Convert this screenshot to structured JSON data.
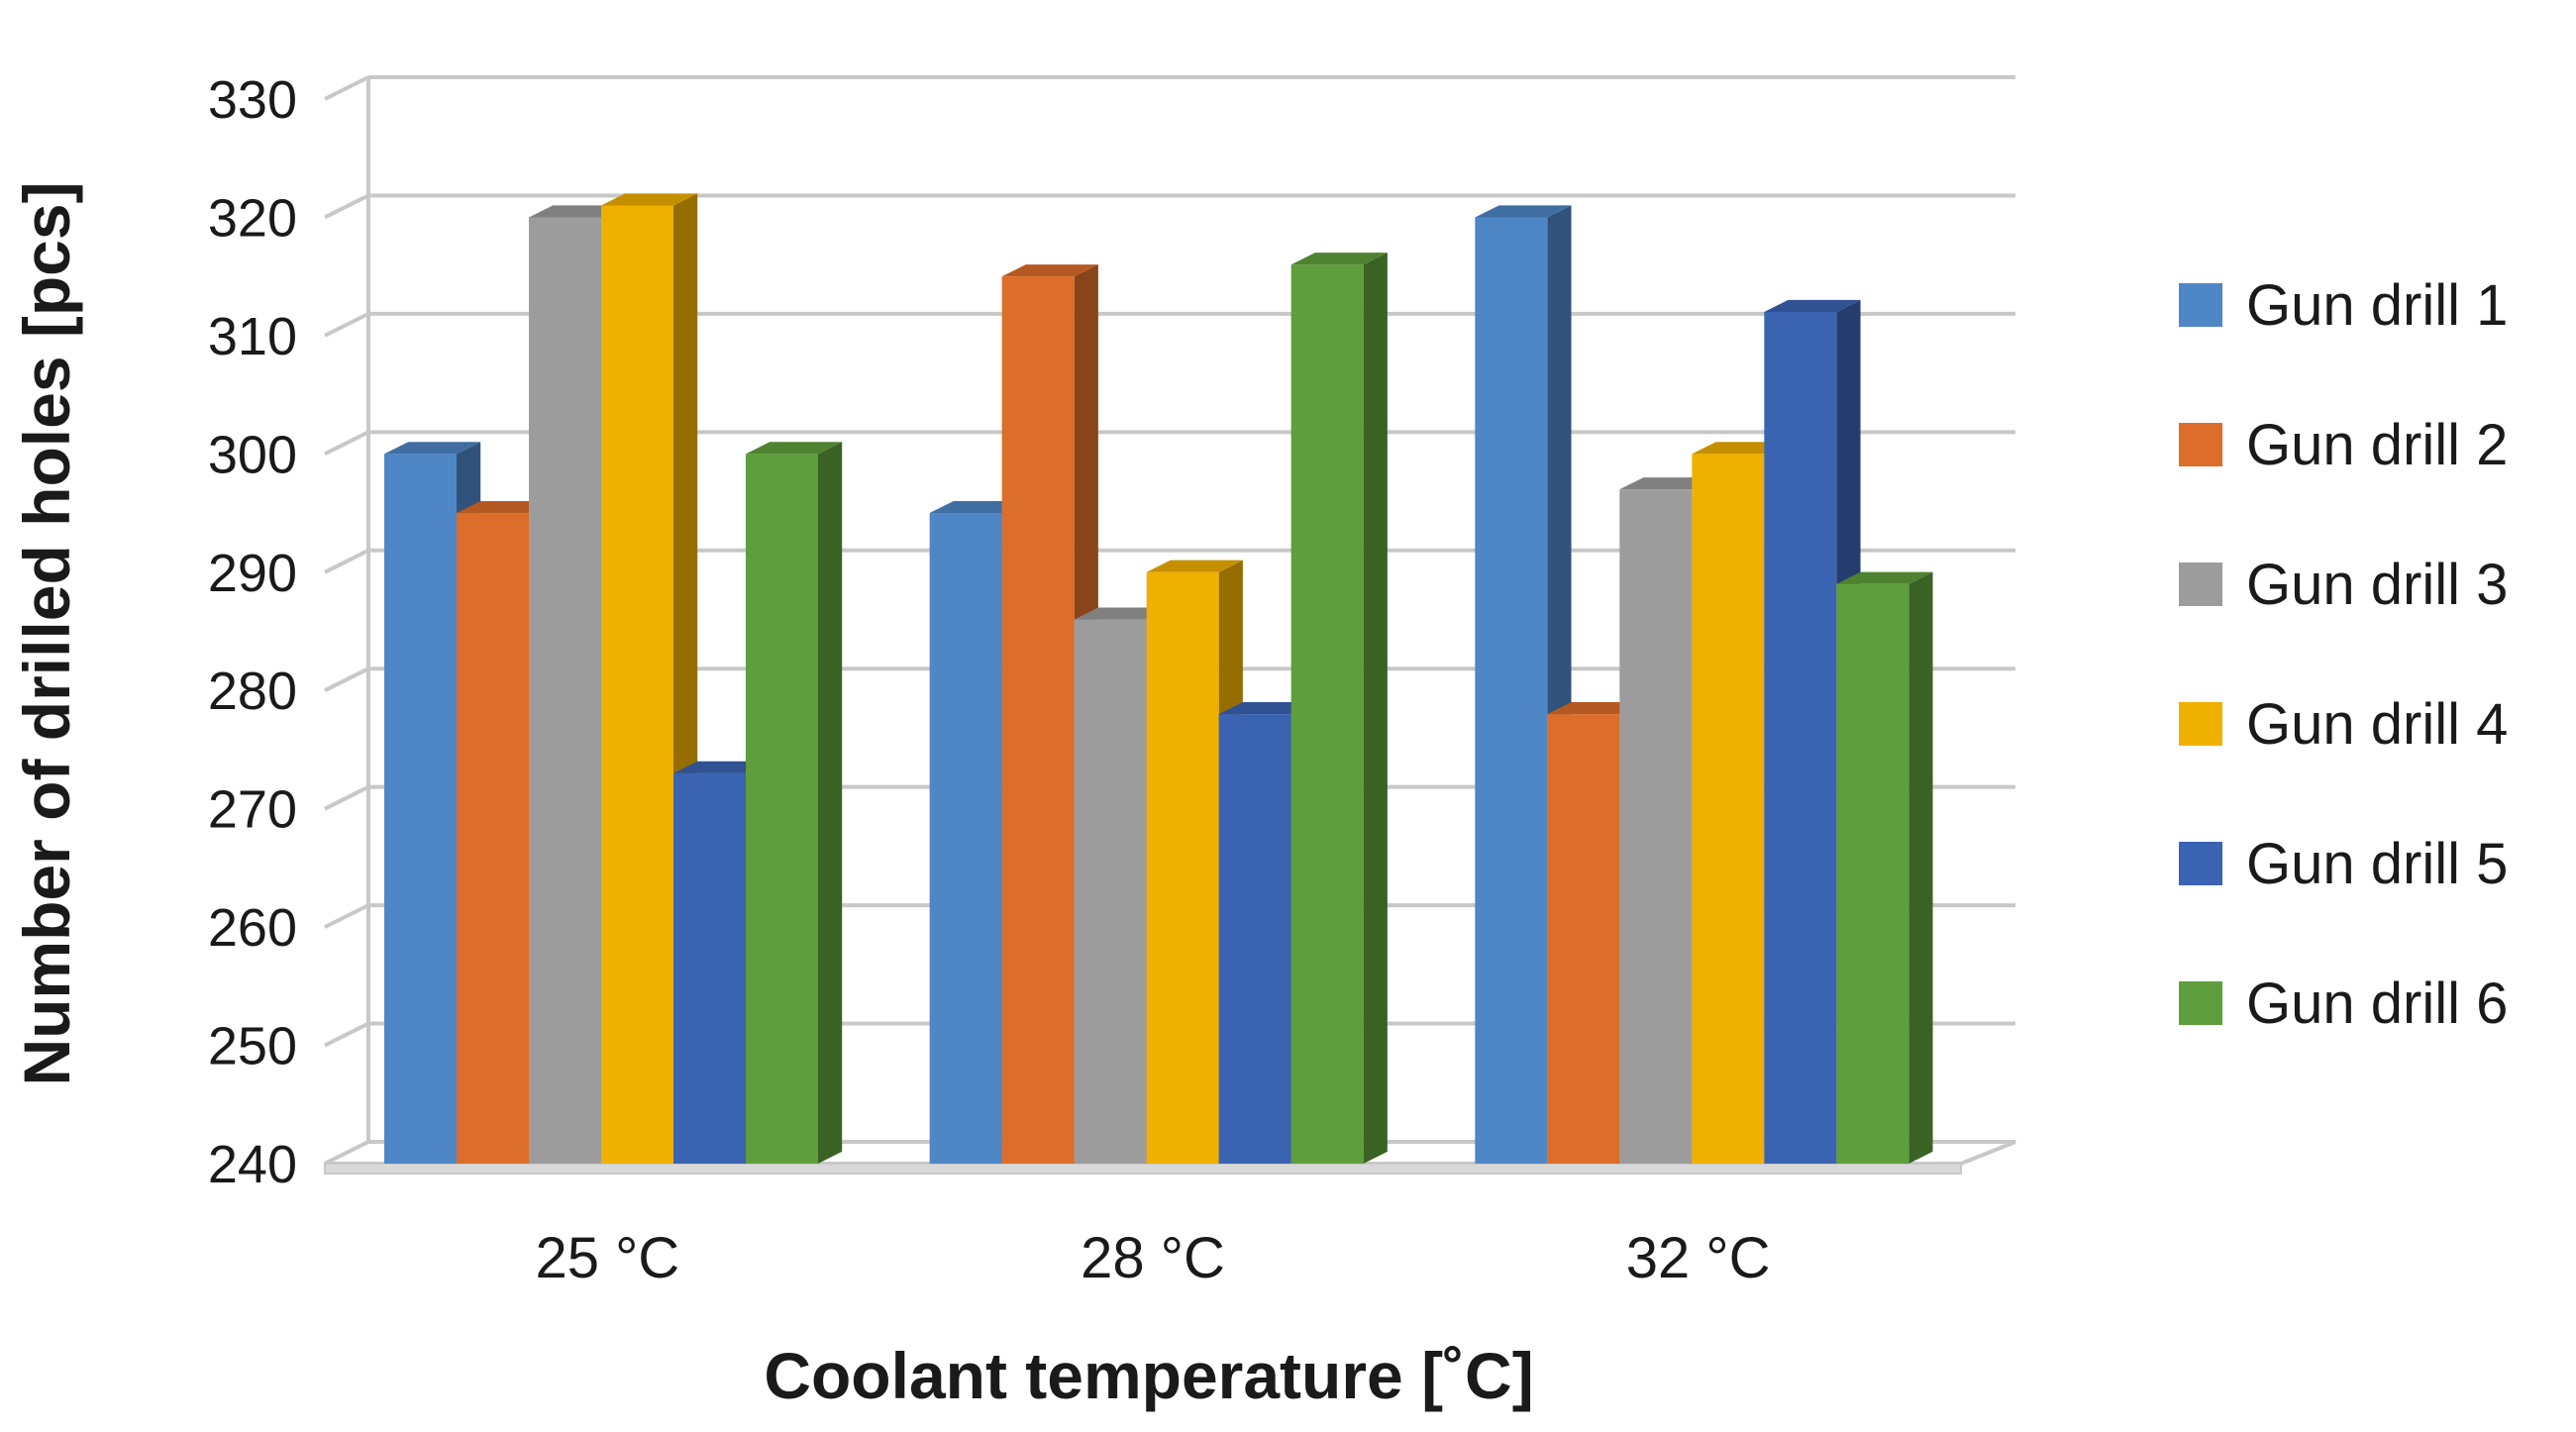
{
  "chart_data": {
    "type": "bar",
    "categories": [
      "25 °C",
      "28 °C",
      "32 °C"
    ],
    "series": [
      {
        "name": "Gun drill 1",
        "values": [
          300,
          295,
          320
        ],
        "color": "#4f86c6"
      },
      {
        "name": "Gun drill 2",
        "values": [
          295,
          315,
          278
        ],
        "color": "#dd6d2a"
      },
      {
        "name": "Gun drill 3",
        "values": [
          320,
          286,
          297
        ],
        "color": "#9c9c9c"
      },
      {
        "name": "Gun drill 4",
        "values": [
          321,
          290,
          300
        ],
        "color": "#f0b000"
      },
      {
        "name": "Gun drill 5",
        "values": [
          273,
          278,
          312
        ],
        "color": "#3a63b2"
      },
      {
        "name": "Gun drill 6",
        "values": [
          300,
          316,
          289
        ],
        "color": "#5f9e3c"
      }
    ],
    "xlabel": "Coolant temperature [˚C]",
    "ylabel": "Number of drilled holes [pcs]",
    "ylim": [
      240,
      330
    ],
    "yticks": [
      240,
      250,
      260,
      270,
      280,
      290,
      300,
      310,
      320,
      330
    ],
    "grid": true,
    "legend_position": "right"
  }
}
